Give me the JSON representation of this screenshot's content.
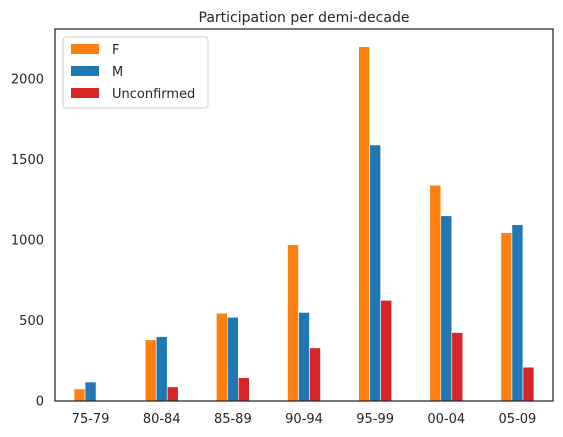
{
  "chart_data": {
    "type": "bar",
    "title": "Participation per demi-decade",
    "xlabel": "",
    "ylabel": "",
    "categories": [
      "75-79",
      "80-84",
      "85-89",
      "90-94",
      "95-99",
      "00-04",
      "05-09"
    ],
    "series": [
      {
        "name": "F",
        "color": "#ff7f0e",
        "values": [
          75,
          380,
          545,
          970,
          2200,
          1340,
          1045
        ]
      },
      {
        "name": "M",
        "color": "#1f77b4",
        "values": [
          118,
          400,
          520,
          550,
          1590,
          1150,
          1095
        ]
      },
      {
        "name": "Unconfirmed",
        "color": "#d62728",
        "values": [
          0,
          88,
          145,
          330,
          625,
          425,
          210
        ]
      }
    ],
    "yticks": [
      0,
      500,
      1000,
      1500,
      2000
    ],
    "ylim": [
      0,
      2310
    ],
    "grid": false,
    "legend_position": "top-left"
  }
}
